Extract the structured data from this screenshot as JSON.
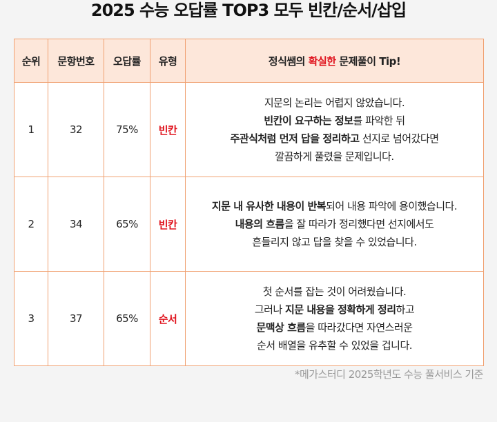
{
  "title": "2025 수능 오답률 TOP3 모두 빈칸/순서/삽입",
  "header": {
    "rank": "순위",
    "question_no": "문항번호",
    "error_rate": "오답률",
    "type": "유형",
    "tip_pre": "정식쌤의 ",
    "tip_hl": "확실한",
    "tip_post": " 문제풀이 Tip!"
  },
  "rows": [
    {
      "rank": "1",
      "question_no": "32",
      "error_rate": "75%",
      "type": "빈칸",
      "lines": [
        [
          {
            "t": "지문의 논리는 어렵지 않았습니다.",
            "b": false
          }
        ],
        [
          {
            "t": "빈칸이 요구하는 정보",
            "b": true
          },
          {
            "t": "를 파악한 뒤",
            "b": false
          }
        ],
        [
          {
            "t": "주관식처럼 먼저 답을 정리하고",
            "b": true
          },
          {
            "t": " 선지로 넘어갔다면",
            "b": false
          }
        ],
        [
          {
            "t": "깔끔하게 풀렸을 문제입니다.",
            "b": false
          }
        ]
      ]
    },
    {
      "rank": "2",
      "question_no": "34",
      "error_rate": "65%",
      "type": "빈칸",
      "lines": [
        [
          {
            "t": "지문 내 유사한 내용이 반복",
            "b": true
          },
          {
            "t": "되어 내용 파악에 용이했습니다.",
            "b": false
          }
        ],
        [
          {
            "t": "내용의 흐름",
            "b": true
          },
          {
            "t": "을 잘 따라가 정리했다면 선지에서도",
            "b": false
          }
        ],
        [
          {
            "t": "흔들리지 않고 답을 찾을 수 있었습니다.",
            "b": false
          }
        ]
      ]
    },
    {
      "rank": "3",
      "question_no": "37",
      "error_rate": "65%",
      "type": "순서",
      "lines": [
        [
          {
            "t": "첫 순서를 잡는 것이 어려웠습니다.",
            "b": false
          }
        ],
        [
          {
            "t": "그러나 ",
            "b": false
          },
          {
            "t": "지문 내용을 정확하게 정리",
            "b": true
          },
          {
            "t": "하고",
            "b": false
          }
        ],
        [
          {
            "t": "문맥상 흐름",
            "b": true
          },
          {
            "t": "을 따라갔다면 자연스러운",
            "b": false
          }
        ],
        [
          {
            "t": "순서 배열을 유추할 수 있었을 겁니다.",
            "b": false
          }
        ]
      ]
    }
  ],
  "footer": "*메가스터디 2025학년도 수능 풀서비스 기준"
}
